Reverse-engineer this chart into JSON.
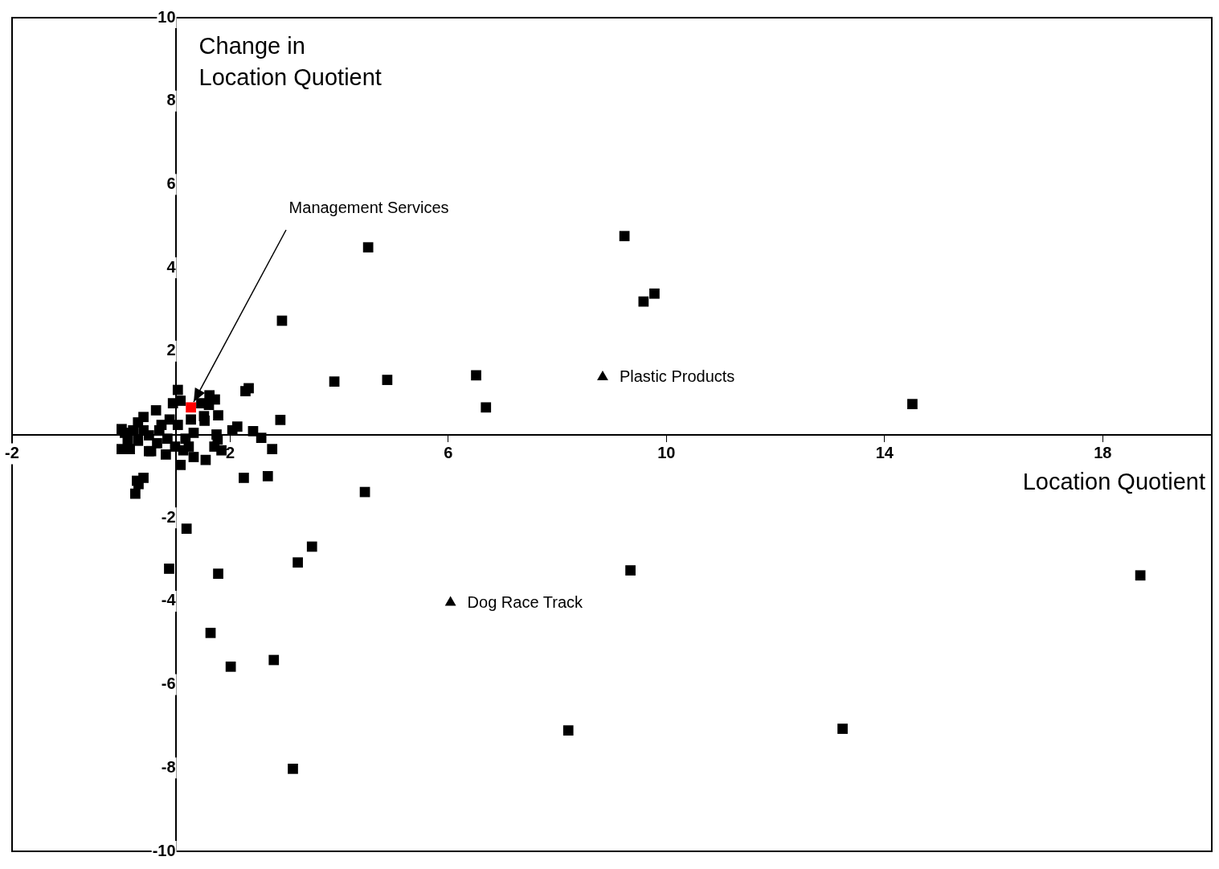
{
  "chart_data": {
    "type": "scatter",
    "xlabel": "Location Quotient",
    "ylabel": "Change in\nLocation Quotient",
    "xlim": [
      -2,
      20
    ],
    "xticks": [
      -2,
      2,
      6,
      10,
      14,
      18
    ],
    "ylim": [
      -10,
      10
    ],
    "yticks": [
      -10,
      -8,
      -6,
      -4,
      -2,
      2,
      4,
      6,
      8,
      10
    ],
    "grid": false,
    "legend": false,
    "series": [
      {
        "color": "#000000",
        "marker": "square",
        "x": [
          4.53,
          9.23,
          9.58,
          9.78,
          2.95,
          3.91,
          4.88,
          6.51,
          6.69,
          14.51,
          2.92,
          2.34,
          2.28,
          2.42,
          2.57,
          2.77,
          2.25,
          2.69,
          4.47,
          1.2,
          0.88,
          1.78,
          3.24,
          3.5,
          1.64,
          2.01,
          2.8,
          3.15,
          8.2,
          13.23,
          9.34,
          18.69,
          0.26,
          0.32,
          0.41,
          0.29,
          1.04,
          0.64,
          0.95,
          1.09,
          1.62,
          1.72,
          1.61,
          1.47,
          1.78,
          1.52,
          1.53,
          2.13,
          2.04,
          1.75,
          1.77,
          1.71,
          1.84,
          1.55,
          1.33,
          1.14,
          1.09,
          0.82,
          0.55,
          0.07,
          0.01,
          0.12,
          0.01,
          0.16,
          0.31,
          0.41,
          0.51,
          0.51,
          0.7,
          0.74,
          0.89,
          0.85,
          1.04,
          1.18,
          1.28,
          1.33,
          1.24,
          0.99,
          0.66,
          0.31,
          0.22,
          0.41
        ],
        "values": [
          4.49,
          4.76,
          3.19,
          3.38,
          2.73,
          1.27,
          1.31,
          1.42,
          0.65,
          0.73,
          0.35,
          1.11,
          1.04,
          0.08,
          -0.08,
          -0.35,
          -1.04,
          -1.0,
          -1.38,
          -2.26,
          -3.22,
          -3.34,
          -3.07,
          -2.69,
          -4.76,
          -5.57,
          -5.41,
          -8.02,
          -7.1,
          -7.06,
          -3.26,
          -3.38,
          -1.42,
          -1.19,
          -1.04,
          -1.11,
          1.07,
          0.58,
          0.75,
          0.81,
          0.94,
          0.84,
          0.71,
          0.75,
          0.46,
          0.44,
          0.33,
          0.19,
          0.1,
          0.0,
          -0.12,
          -0.29,
          -0.38,
          -0.61,
          -0.54,
          -0.38,
          -0.73,
          -0.48,
          -0.4,
          0.04,
          0.13,
          -0.15,
          -0.35,
          -0.35,
          0.29,
          0.42,
          -0.02,
          -0.4,
          0.1,
          0.23,
          0.36,
          -0.1,
          0.23,
          -0.1,
          0.36,
          0.04,
          -0.29,
          -0.29,
          -0.21,
          -0.15,
          0.1,
          0.1
        ]
      },
      {
        "color": "#ff0000",
        "marker": "square",
        "x": [
          1.28
        ],
        "values": [
          0.65
        ]
      },
      {
        "color": "#000000",
        "marker": "triangle",
        "x": [
          8.83,
          6.04
        ],
        "values": [
          1.38,
          -4.03
        ]
      }
    ],
    "annotations": [
      {
        "text": "Management Services",
        "x": 1.28,
        "y": 0.65
      },
      {
        "text": "Plastic Products",
        "x": 8.83,
        "y": 1.38
      },
      {
        "text": "Dog Race Track",
        "x": 6.04,
        "y": -4.03
      }
    ]
  }
}
